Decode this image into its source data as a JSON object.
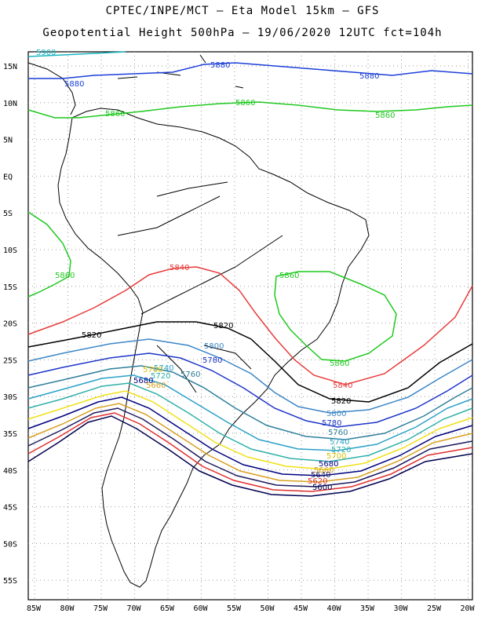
{
  "header": {
    "line1": "CPTEC/INPE/MCT –  Eta Model 15km – GFS",
    "line2": "Geopotential Height 500hPa – 19/06/2020 12UTC fct=104h"
  },
  "axes": {
    "lat_ticks": [
      "15N",
      "10N",
      "5N",
      "EQ",
      "5S",
      "10S",
      "15S",
      "20S",
      "25S",
      "30S",
      "35S",
      "40S",
      "45S",
      "50S",
      "55S"
    ],
    "lon_ticks": [
      "85W",
      "80W",
      "75W",
      "70W",
      "65W",
      "60W",
      "55W",
      "50W",
      "45W",
      "40W",
      "35W",
      "30W",
      "25W",
      "20W"
    ],
    "lat_range": [
      -58,
      16
    ],
    "lon_range": [
      -86,
      -20
    ],
    "grid": "dotted"
  },
  "map": {
    "region": "South America",
    "background": "#ffffff",
    "coastline_color": "#000000",
    "contours": [
      {
        "level": "5900",
        "color": "#1ab5c0"
      },
      {
        "level": "5880",
        "color": "#1c3fd8"
      },
      {
        "level": "5860",
        "color": "#1fc81f"
      },
      {
        "level": "5840",
        "color": "#e83c3c"
      },
      {
        "level": "5820",
        "color": "#000000"
      },
      {
        "level": "5800",
        "color": "#3d86c6"
      },
      {
        "level": "5780",
        "color": "#1d35c8"
      },
      {
        "level": "5760",
        "color": "#2f7f9c"
      },
      {
        "level": "5740",
        "color": "#2aa1c8"
      },
      {
        "level": "5720",
        "color": "#2fb0a8"
      },
      {
        "level": "5700",
        "color": "#f0e018"
      },
      {
        "level": "5680",
        "color": "#000080"
      },
      {
        "level": "5660",
        "color": "#d8a020"
      },
      {
        "level": "5640",
        "color": "#1a1a60"
      },
      {
        "level": "5620",
        "color": "#e03030"
      },
      {
        "level": "5600",
        "color": "#000050"
      }
    ]
  }
}
